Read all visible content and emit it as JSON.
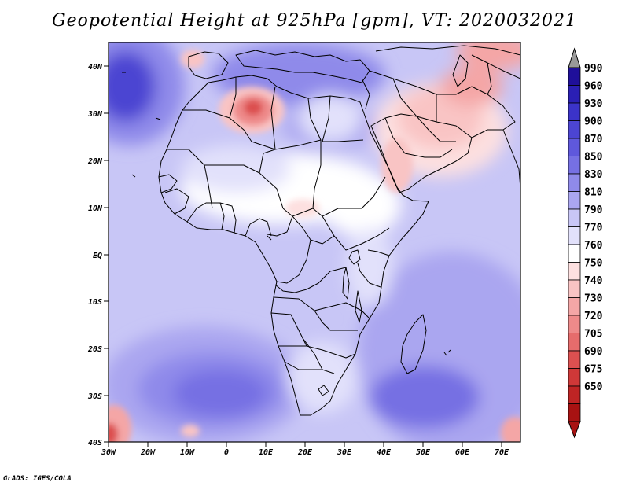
{
  "title": "Geopotential Height at 925hPa [gpm], VT: 2020032021",
  "credit": "GrADS: IGES/COLA",
  "map": {
    "lon_range": [
      -30,
      75
    ],
    "lat_range": [
      -40,
      45
    ],
    "lat_labels": [
      "40N",
      "30N",
      "20N",
      "10N",
      "EQ",
      "10S",
      "20S",
      "30S",
      "40S"
    ],
    "lon_labels": [
      "30W",
      "20W",
      "10W",
      "0",
      "10E",
      "20E",
      "30E",
      "40E",
      "50E",
      "60E",
      "70E"
    ]
  },
  "colorbar": {
    "levels": [
      "990",
      "960",
      "930",
      "900",
      "870",
      "850",
      "830",
      "810",
      "790",
      "770",
      "760",
      "750",
      "740",
      "730",
      "720",
      "705",
      "690",
      "675",
      "650"
    ],
    "colors": [
      "#1f0f9a",
      "#2a1fb4",
      "#3b33c8",
      "#4c45d2",
      "#5f58dc",
      "#7670e3",
      "#8f8aea",
      "#aaa6f0",
      "#c8c6f6",
      "#e2e1fb",
      "#ffffff",
      "#fde0e0",
      "#f9c4c4",
      "#f4a6a6",
      "#ee8a8a",
      "#e66c6c",
      "#dc5050",
      "#cf3838",
      "#be2424",
      "#a81212"
    ]
  }
}
